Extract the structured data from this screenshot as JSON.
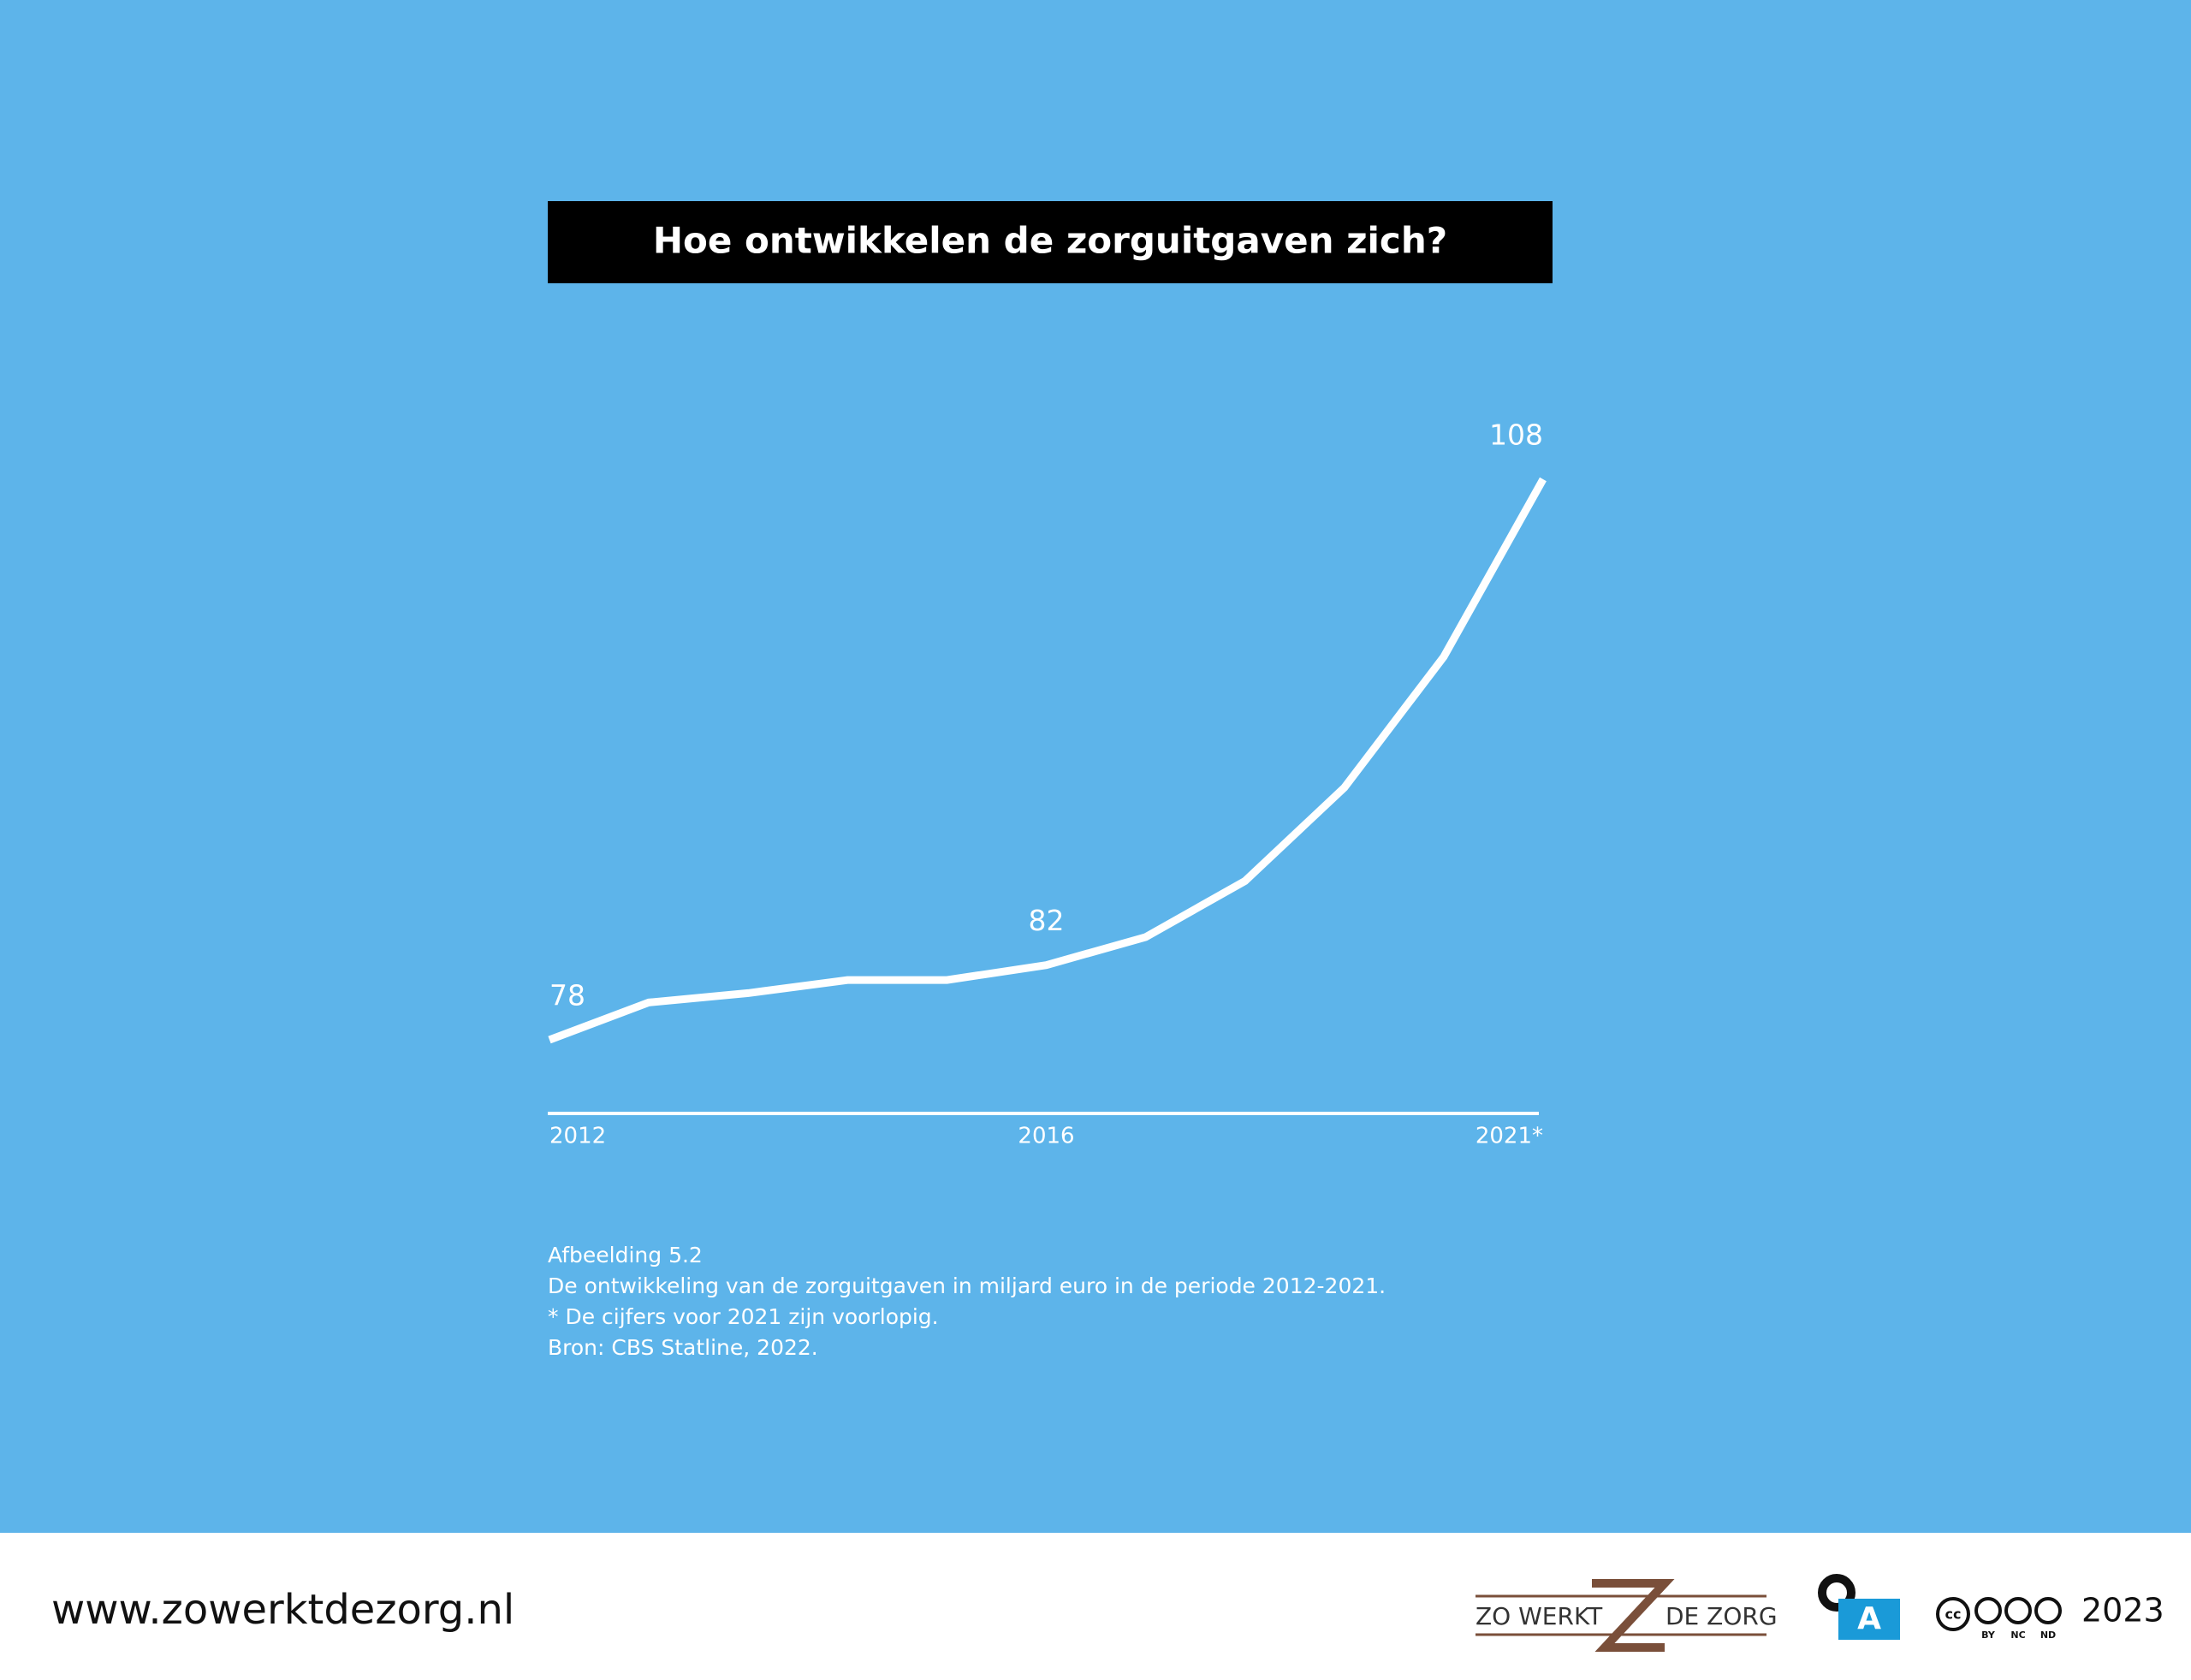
{
  "chart_data": {
    "type": "line",
    "title": "Hoe ontwikkelen de zorguitgaven zich?",
    "categories": [
      "2012",
      null,
      null,
      null,
      null,
      "2016",
      null,
      null,
      null,
      null,
      "2021*"
    ],
    "values": [
      78,
      80,
      80.5,
      81.2,
      81.2,
      82,
      83.5,
      86.5,
      91.5,
      98.5,
      108
    ],
    "value_labels": [
      "78",
      null,
      null,
      null,
      null,
      "82",
      null,
      null,
      null,
      null,
      "108"
    ],
    "color": "#ffffff",
    "caption": [
      "Afbeelding 5.2",
      "De ontwikkeling van de zorguitgaven in miljard euro in de periode 2012-2021.",
      "* De cijfers voor 2021 zijn voorlopig.",
      "Bron: CBS Statline, 2022."
    ]
  },
  "footer": {
    "url": "www.zowerktdezorg.nl",
    "logo_left": "ZO WERKT",
    "logo_right": "DE ZORG",
    "license": [
      "BY",
      "NC",
      "ND"
    ],
    "year": "2023"
  }
}
